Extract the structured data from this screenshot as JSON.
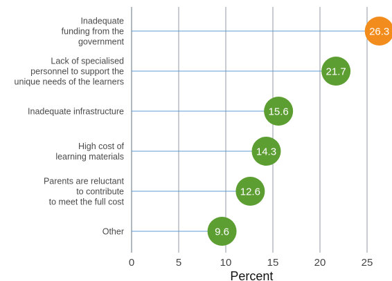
{
  "chart_data": {
    "type": "lollipop",
    "orientation": "horizontal",
    "title": "",
    "xlabel": "Percent",
    "ylabel": "",
    "xlim": [
      0,
      25
    ],
    "xticks": [
      0,
      5,
      10,
      15,
      20,
      25
    ],
    "grid": "vertical",
    "categories": [
      [
        "Inadequate",
        "funding from the",
        "government"
      ],
      [
        "Lack of specialised",
        "personnel to support the",
        "unique needs of the learners"
      ],
      [
        "Inadequate infrastructure"
      ],
      [
        "High cost of",
        "learning materials"
      ],
      [
        "Parents are reluctant",
        "to contribute",
        "to meet the full cost"
      ],
      [
        "Other"
      ]
    ],
    "values": [
      26.3,
      21.7,
      15.6,
      14.3,
      12.6,
      9.6
    ],
    "value_labels": [
      "26.3",
      "21.7",
      "15.6",
      "14.3",
      "12.6",
      "9.6"
    ],
    "colors": {
      "highlight": "#f28c1c",
      "default": "#5c9e32",
      "stem": "#5b9bd5",
      "grid": "#8e9aa6"
    },
    "highlight_index": 0
  }
}
